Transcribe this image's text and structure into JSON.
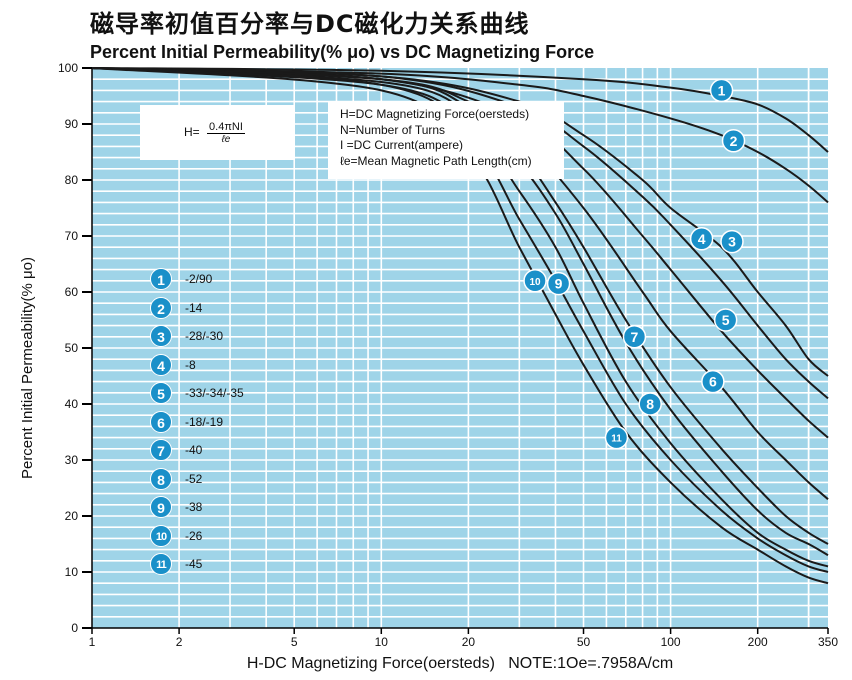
{
  "header": {
    "title_cn": "磁导率初值百分率与DC磁化力关系曲线",
    "title_en": "Percent Initial Permeability(% μo) vs DC Magnetizing Force"
  },
  "formula": {
    "lhs": "H=",
    "numerator": "0.4πNI",
    "denominator": "ℓe"
  },
  "definitions": [
    "H=DC Magnetizing Force(oersteds)",
    "N=Number of Turns",
    "I =DC Current(ampere)",
    "ℓe=Mean Magnetic Path Length(cm)"
  ],
  "materials": [
    {
      "id": "1",
      "label": "-2/90"
    },
    {
      "id": "2",
      "label": "-14"
    },
    {
      "id": "3",
      "label": "-28/-30"
    },
    {
      "id": "4",
      "label": "-8"
    },
    {
      "id": "5",
      "label": "-33/-34/-35"
    },
    {
      "id": "6",
      "label": "-18/-19"
    },
    {
      "id": "7",
      "label": "-40"
    },
    {
      "id": "8",
      "label": "-52"
    },
    {
      "id": "9",
      "label": "-38"
    },
    {
      "id": "10",
      "label": "-26"
    },
    {
      "id": "11",
      "label": "-45"
    }
  ],
  "colors": {
    "plot_bg": "#9fd4e8",
    "grid": "#ffffff",
    "curve": "#1a1a1a",
    "badge": "#1a90c9"
  },
  "chart_data": {
    "type": "line",
    "xlabel": "H-DC Magnetizing Force(oersteds)   NOTE:1Oe=.7958A/cm",
    "ylabel": "Percent Initial Permeability(% μo)",
    "x_scale": "log",
    "xlim": [
      1,
      350
    ],
    "ylim": [
      0,
      100
    ],
    "x_ticks": [
      1,
      2,
      5,
      10,
      20,
      50,
      100,
      200,
      350
    ],
    "y_ticks": [
      0,
      10,
      20,
      30,
      40,
      50,
      60,
      70,
      80,
      90,
      100
    ],
    "grid": true,
    "series": [
      {
        "name": "1",
        "x": [
          1,
          10,
          50,
          100,
          150,
          200,
          250,
          300,
          350
        ],
        "y": [
          100,
          99.5,
          98,
          96.5,
          95,
          93.5,
          91,
          88,
          85
        ]
      },
      {
        "name": "2",
        "x": [
          1,
          10,
          30,
          50,
          100,
          150,
          200,
          250,
          300,
          350
        ],
        "y": [
          100,
          99,
          97,
          95,
          91,
          88,
          85,
          82,
          79,
          76
        ]
      },
      {
        "name": "3",
        "x": [
          1,
          10,
          30,
          50,
          80,
          100,
          150,
          200,
          250,
          300,
          350
        ],
        "y": [
          100,
          98.5,
          94,
          88,
          80,
          75,
          68,
          60,
          54,
          48,
          45
        ]
      },
      {
        "name": "4",
        "x": [
          1,
          10,
          30,
          50,
          80,
          100,
          150,
          200,
          250,
          300,
          350
        ],
        "y": [
          100,
          98.5,
          93,
          86,
          77,
          72,
          62,
          54,
          48,
          44,
          41
        ]
      },
      {
        "name": "5",
        "x": [
          1,
          10,
          30,
          50,
          80,
          100,
          150,
          200,
          250,
          300,
          350
        ],
        "y": [
          100,
          98,
          91,
          82,
          70,
          64,
          53,
          46,
          41,
          37,
          34
        ]
      },
      {
        "name": "6",
        "x": [
          1,
          10,
          20,
          30,
          50,
          80,
          100,
          150,
          200,
          250,
          300,
          350
        ],
        "y": [
          100,
          98,
          94,
          88,
          75,
          60,
          53,
          43,
          35,
          30,
          26,
          23
        ]
      },
      {
        "name": "7",
        "x": [
          1,
          10,
          20,
          30,
          40,
          50,
          70,
          100,
          150,
          200,
          250,
          300,
          350
        ],
        "y": [
          100,
          98,
          93,
          85,
          76,
          68,
          55,
          43,
          32,
          25,
          20,
          17,
          15
        ]
      },
      {
        "name": "8",
        "x": [
          1,
          10,
          20,
          30,
          40,
          50,
          70,
          100,
          150,
          200,
          250,
          300,
          350
        ],
        "y": [
          100,
          97.5,
          92,
          83,
          74,
          65,
          51,
          39,
          28,
          21,
          17,
          15,
          13
        ]
      },
      {
        "name": "9",
        "x": [
          1,
          10,
          20,
          30,
          40,
          50,
          70,
          100,
          150,
          200,
          250,
          300,
          350
        ],
        "y": [
          100,
          97,
          90,
          78,
          68,
          58,
          44,
          33,
          23,
          17,
          14,
          12,
          11
        ]
      },
      {
        "name": "10",
        "x": [
          1,
          10,
          20,
          30,
          40,
          50,
          70,
          100,
          150,
          200,
          250,
          300,
          350
        ],
        "y": [
          100,
          97,
          88,
          73,
          62,
          53,
          40,
          30,
          21,
          16,
          13,
          11,
          10
        ]
      },
      {
        "name": "11",
        "x": [
          1,
          10,
          20,
          30,
          40,
          50,
          70,
          100,
          150,
          200,
          250,
          300,
          350
        ],
        "y": [
          100,
          96,
          85,
          68,
          56,
          47,
          35,
          26,
          18,
          14,
          11,
          9,
          8
        ]
      }
    ],
    "curve_badges": [
      {
        "id": "1",
        "x": 150,
        "y": 96
      },
      {
        "id": "2",
        "x": 165,
        "y": 87
      },
      {
        "id": "3",
        "x": 163,
        "y": 69
      },
      {
        "id": "4",
        "x": 128,
        "y": 69.5
      },
      {
        "id": "5",
        "x": 155,
        "y": 55
      },
      {
        "id": "6",
        "x": 140,
        "y": 44
      },
      {
        "id": "7",
        "x": 75,
        "y": 52
      },
      {
        "id": "8",
        "x": 85,
        "y": 40
      },
      {
        "id": "9",
        "x": 41,
        "y": 61.5
      },
      {
        "id": "10",
        "x": 34,
        "y": 62
      },
      {
        "id": "11",
        "x": 65,
        "y": 34
      }
    ]
  }
}
